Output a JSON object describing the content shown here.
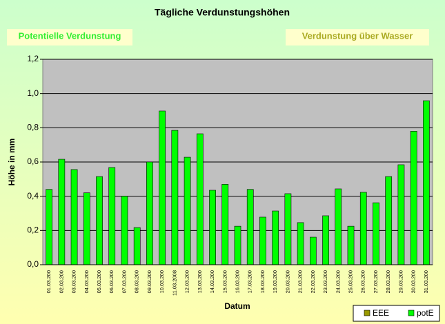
{
  "buttons": [
    "Potentielle Verdunstung",
    "Verdunstung über Wasser"
  ],
  "chart_data": {
    "type": "bar",
    "title": "Tägliche Verdunstungshöhen",
    "ylabel": "Höhe in mm",
    "xlabel": "Datum",
    "categories": [
      "01.03.200",
      "02.03.200",
      "03.03.200",
      "04.03.200",
      "05.03.200",
      "06.03.200",
      "07.03.200",
      "08.03.200",
      "09.03.200",
      "10.03.200",
      "11.03.2008",
      "12.03.200",
      "13.03.200",
      "14.03.200",
      "15.03.200",
      "16.03.200",
      "17.03.200",
      "18.03.200",
      "19.03.200",
      "20.03.200",
      "21.03.200",
      "22.03.200",
      "23.03.200",
      "24.03.200",
      "25.03.200",
      "26.03.200",
      "27.03.200",
      "28.03.200",
      "29.03.200",
      "30.03.200",
      "31.03.200"
    ],
    "series": [
      {
        "name": "EEE",
        "color": "#999900",
        "values": [
          null,
          null,
          null,
          null,
          null,
          null,
          null,
          null,
          null,
          null,
          null,
          null,
          null,
          null,
          null,
          null,
          null,
          null,
          null,
          null,
          null,
          null,
          null,
          null,
          null,
          null,
          null,
          null,
          null,
          null,
          null
        ]
      },
      {
        "name": "potE",
        "color": "#00ff00",
        "values": [
          0.44,
          0.616,
          0.556,
          0.42,
          0.515,
          0.568,
          0.4,
          0.217,
          0.6,
          0.898,
          0.785,
          0.628,
          0.765,
          0.435,
          0.47,
          0.225,
          0.44,
          0.278,
          0.314,
          0.415,
          0.246,
          0.161,
          0.286,
          0.443,
          0.225,
          0.423,
          0.362,
          0.515,
          0.584,
          0.78,
          0.958
        ]
      }
    ],
    "ylim": [
      0,
      1.2
    ],
    "yticks": [
      {
        "value": 0,
        "label": "0,0"
      },
      {
        "value": 0.2,
        "label": "0,2"
      },
      {
        "value": 0.4,
        "label": "0,4"
      },
      {
        "value": 0.6,
        "label": "0,6"
      },
      {
        "value": 0.8,
        "label": "0,8"
      },
      {
        "value": 1.0,
        "label": "1,0"
      },
      {
        "value": 1.2,
        "label": "1,2"
      }
    ],
    "grid": true,
    "legend": "bottom-right"
  }
}
